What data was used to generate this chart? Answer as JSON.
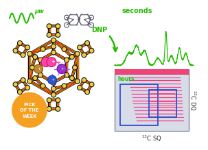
{
  "bg_color": "#ffffff",
  "dnp_arrow_color": "#22bb00",
  "seconds_color": "#22bb00",
  "hours_color": "#22bb00",
  "pink_bar_color": "#ee6688",
  "spectrum_color": "#22bb00",
  "dq_label": "$^{13}$C DQ",
  "sq_label": "$^{13}$C SQ",
  "seconds_label": "seconds",
  "hours_label": "hours",
  "dnp_label": "DNP",
  "mw_label": "μw",
  "pick_color": "#f5a020",
  "pick_text": "PICK\nOF THE\nWEEK",
  "zeolite_red": "#dd1111",
  "zeolite_yellow": "#ddaa00",
  "zeolite_black": "#111111",
  "mol_color": "#555566"
}
